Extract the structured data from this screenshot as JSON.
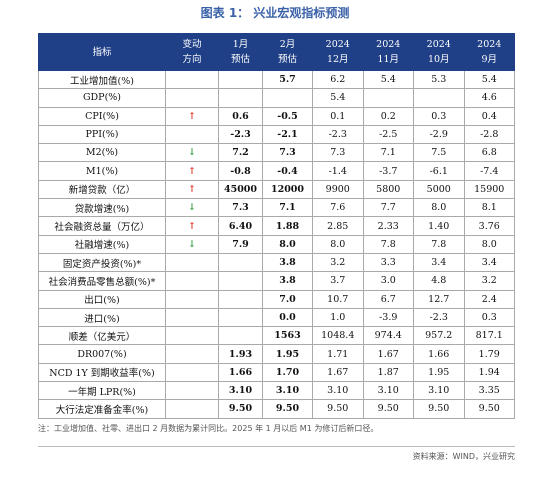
{
  "title": "图表 1： 兴业宏观指标预测",
  "table": {
    "header": [
      [
        "指标"
      ],
      [
        "变动",
        "方向"
      ],
      [
        "1月",
        "预估"
      ],
      [
        "2月",
        "预估"
      ],
      [
        "2024",
        "12月"
      ],
      [
        "2024",
        "11月"
      ],
      [
        "2024",
        "10月"
      ],
      [
        "2024",
        "9月"
      ]
    ],
    "rows": [
      [
        "工业增加值(%)",
        null,
        null,
        "5.7",
        "6.2",
        "5.4",
        "5.3",
        "5.4"
      ],
      [
        "GDP(%)",
        null,
        null,
        null,
        "5.4",
        null,
        null,
        "4.6"
      ],
      [
        "CPI(%)",
        "↑",
        "0.6",
        "-0.5",
        "0.1",
        "0.2",
        "0.3",
        "0.4"
      ],
      [
        "PPI(%)",
        null,
        "-2.3",
        "-2.1",
        "-2.3",
        "-2.5",
        "-2.9",
        "-2.8"
      ],
      [
        "M2(%)",
        "↓",
        "7.2",
        "7.3",
        "7.3",
        "7.1",
        "7.5",
        "6.8"
      ],
      [
        "M1(%)",
        "↑",
        "-0.8",
        "-0.4",
        "-1.4",
        "-3.7",
        "-6.1",
        "-7.4"
      ],
      [
        "新增贷款（亿）",
        "↑",
        "45000",
        "12000",
        "9900",
        "5800",
        "5000",
        "15900"
      ],
      [
        "贷款增速(%)",
        "↓",
        "7.3",
        "7.1",
        "7.6",
        "7.7",
        "8.0",
        "8.1"
      ],
      [
        "社会融资总量（万亿）",
        "↑",
        "6.40",
        "1.88",
        "2.85",
        "2.33",
        "1.40",
        "3.76"
      ],
      [
        "社融增速(%)",
        "↓",
        "7.9",
        "8.0",
        "8.0",
        "7.8",
        "7.8",
        "8.0"
      ],
      [
        "固定资产投资(%)*",
        null,
        null,
        "3.8",
        "3.2",
        "3.3",
        "3.4",
        "3.4"
      ],
      [
        "社会消费品零售总额(%)*",
        null,
        null,
        "3.8",
        "3.7",
        "3.0",
        "4.8",
        "3.2"
      ],
      [
        "出口(%)",
        null,
        null,
        "7.0",
        "10.7",
        "6.7",
        "12.7",
        "2.4"
      ],
      [
        "进口(%)",
        null,
        null,
        "0.0",
        "1.0",
        "-3.9",
        "-2.3",
        "0.3"
      ],
      [
        "顺差（亿美元）",
        null,
        null,
        "1563",
        "1048.4",
        "974.4",
        "957.2",
        "817.1"
      ],
      [
        "DR007(%)",
        null,
        "1.93",
        "1.95",
        "1.71",
        "1.67",
        "1.66",
        "1.79"
      ],
      [
        "NCD 1Y 到期收益率(%)",
        null,
        "1.66",
        "1.70",
        "1.67",
        "1.87",
        "1.95",
        "1.94"
      ],
      [
        "一年期 LPR(%)",
        null,
        "3.10",
        "3.10",
        "3.10",
        "3.10",
        "3.10",
        "3.35"
      ],
      [
        "大行法定准备金率(%)",
        null,
        "9.50",
        "9.50",
        "9.50",
        "9.50",
        "9.50",
        "9.50"
      ]
    ]
  },
  "note": "注：工业增加值、社零、进出口 2 月数据为累计同比。2025 年 1 月以后 M1 为修订后新口径。",
  "source": "资料来源：WIND，兴业研究"
}
